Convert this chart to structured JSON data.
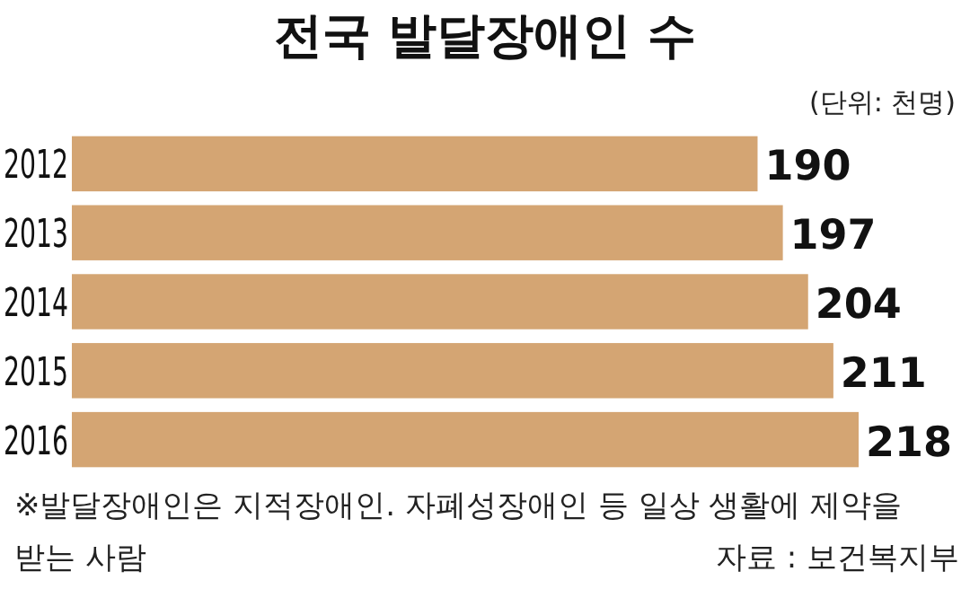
{
  "chart_data": {
    "type": "bar",
    "orientation": "horizontal",
    "title": "전국 발달장애인 수",
    "categories": [
      "2012",
      "2013",
      "2014",
      "2015",
      "2016"
    ],
    "values": [
      190,
      197,
      204,
      211,
      218
    ],
    "color": "#d4a573",
    "data_labels": true,
    "tick_labels": "y",
    "annotations": [
      "(단위: 천명)",
      "※발달장애인은 지적장애인. 자폐성장애인 등 일상 생활에 제약을 받는 사람",
      "자료 : 보건복지부"
    ]
  }
}
